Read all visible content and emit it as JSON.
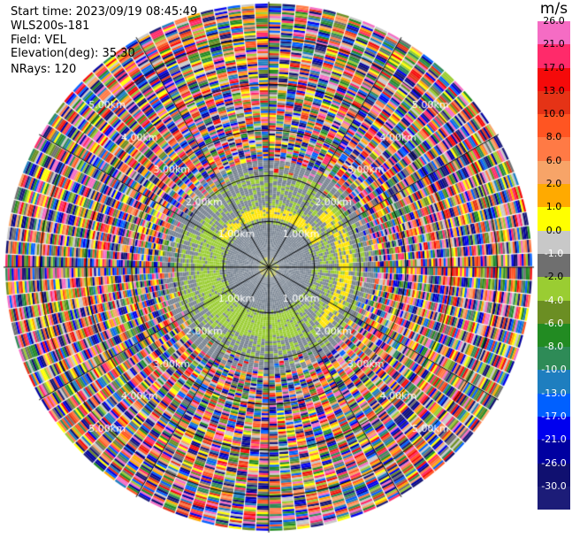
{
  "header": {
    "start_time": "Start time: 2023/09/19 08:45:49",
    "instrument": "WLS200s-181",
    "field": "Field: VEL",
    "elevation": "Elevation(deg): 35.30",
    "nrays": "NRays: 120"
  },
  "colorbar": {
    "unit": "m/s",
    "ticks": [
      "26.0",
      "21.0",
      "17.0",
      "13.0",
      "10.0",
      "8.0",
      "6.0",
      "2.0",
      "1.0",
      "0.0",
      "-1.0",
      "-2.0",
      "-4.0",
      "-6.0",
      "-8.0",
      "-10.0",
      "-13.0",
      "-17.0",
      "-21.0",
      "-26.0",
      "-30.0"
    ],
    "colors": [
      "#f56cc4",
      "#ff2a6a",
      "#f50a0a",
      "#e53316",
      "#ff5522",
      "#ff7a45",
      "#f7a468",
      "#ffaa00",
      "#ffff00",
      "#c8c8c8",
      "#6f6f6f",
      "#9acd32",
      "#6b8e23",
      "#228b22",
      "#2e8b57",
      "#1e7ebf",
      "#0060ff",
      "#0000ee",
      "#0000a0",
      "#101070",
      "#1c1c78"
    ]
  },
  "chart_data": {
    "type": "heatmap",
    "projection": "polar PPI",
    "field": "VEL",
    "units": "m/s",
    "nrays": 120,
    "elevation_deg": 35.3,
    "range_rings_km": [
      1.0,
      2.0,
      3.0,
      4.0,
      5.0
    ],
    "ring_labels": [
      "1.00km",
      "2.00km",
      "3.00km",
      "4.00km",
      "5.00km"
    ],
    "spokes_deg": [
      0,
      30,
      60,
      90,
      120,
      150,
      180,
      210,
      240,
      270,
      300,
      330
    ],
    "value_range": [
      -30,
      26
    ],
    "pattern": {
      "noise_free_max_km": 2.3,
      "features": [
        {
          "desc": "near-zero velocity core",
          "range_km": [
            0,
            2.0
          ],
          "value": 0.0
        },
        {
          "desc": "small positive velocity arc",
          "range_km": [
            1.05,
            1.3
          ],
          "azimuth_deg": [
            300,
            60
          ],
          "value": 2.0
        },
        {
          "desc": "small negative velocity arc",
          "range_km": [
            1.0,
            1.6
          ],
          "azimuth_deg": [
            150,
            300
          ],
          "value": -2.0
        },
        {
          "desc": "positive arc east",
          "range_km": [
            1.5,
            1.8
          ],
          "azimuth_deg": [
            45,
            135
          ],
          "value": 2.0
        }
      ],
      "beyond_km": "random noise across full scale"
    }
  }
}
